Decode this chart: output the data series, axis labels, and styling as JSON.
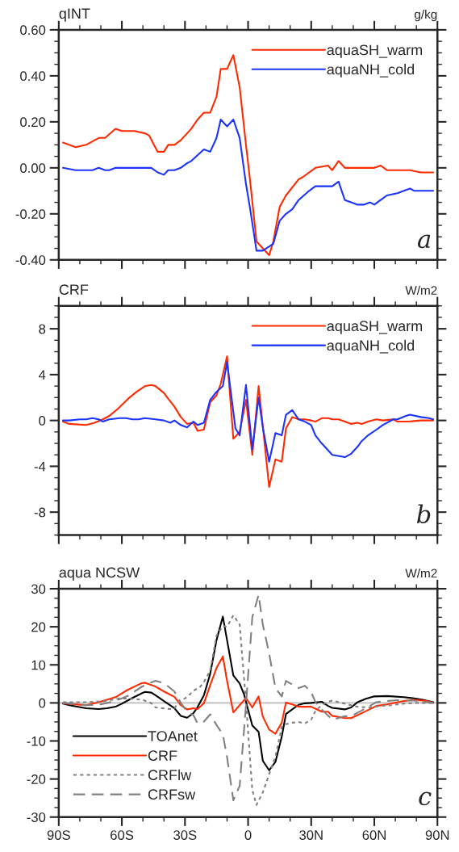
{
  "chart_data": [
    {
      "type": "line",
      "title": "qINT",
      "ylabel": "g/kg",
      "annotations": [
        "a"
      ],
      "legend": "top right",
      "tick_labels": "y",
      "grid": false,
      "line_style": "solid",
      "xlim": [
        -90,
        90
      ],
      "xticks": [
        {
          "value": -90,
          "label": null
        },
        {
          "value": -60,
          "label": null
        },
        {
          "value": -30,
          "label": null
        },
        {
          "value": 0,
          "label": null
        },
        {
          "value": 30,
          "label": null
        },
        {
          "value": 60,
          "label": null
        },
        {
          "value": 90,
          "label": null
        }
      ],
      "ylim": [
        -0.4,
        0.6
      ],
      "yticks": [
        {
          "value": -0.4,
          "label": "-0.40"
        },
        {
          "value": -0.2,
          "label": "-0.20"
        },
        {
          "value": 0,
          "label": "0.00"
        },
        {
          "value": 0.2,
          "label": "0.20"
        },
        {
          "value": 0.4,
          "label": "0.40"
        },
        {
          "value": 0.6,
          "label": "0.60"
        }
      ],
      "series": [
        {
          "name": "aquaSH_warm",
          "color": "#ff2a00",
          "x": [
            -88,
            -82,
            -77,
            -71,
            -68,
            -63,
            -60,
            -57,
            -54,
            -49,
            -47,
            -43,
            -40,
            -38,
            -35,
            -32,
            -29,
            -27,
            -24,
            -21,
            -18,
            -15,
            -13,
            -10,
            -7,
            -4,
            -1,
            1,
            4,
            10,
            12,
            15,
            18,
            24,
            26,
            32,
            38,
            40,
            43,
            46,
            52,
            60,
            63,
            66,
            68,
            71,
            77,
            82,
            88
          ],
          "values": [
            0.11,
            0.09,
            0.1,
            0.13,
            0.13,
            0.17,
            0.16,
            0.16,
            0.16,
            0.15,
            0.14,
            0.07,
            0.07,
            0.1,
            0.1,
            0.12,
            0.15,
            0.17,
            0.21,
            0.24,
            0.24,
            0.31,
            0.43,
            0.43,
            0.49,
            0.35,
            0.1,
            -0.06,
            -0.32,
            -0.38,
            -0.32,
            -0.17,
            -0.12,
            -0.05,
            -0.04,
            0.0,
            0.01,
            -0.01,
            0.03,
            0.0,
            0.0,
            0.0,
            0.01,
            -0.01,
            -0.01,
            -0.01,
            -0.01,
            -0.02,
            -0.02
          ]
        },
        {
          "name": "aquaNH_cold",
          "color": "#1a33ff",
          "x": [
            -88,
            -82,
            -77,
            -74,
            -71,
            -68,
            -66,
            -63,
            -58,
            -54,
            -49,
            -46,
            -43,
            -40,
            -38,
            -35,
            -32,
            -29,
            -27,
            -21,
            -18,
            -15,
            -13,
            -10,
            -7,
            -4,
            -1,
            1,
            4,
            7,
            12,
            15,
            18,
            21,
            24,
            29,
            32,
            40,
            43,
            46,
            49,
            52,
            55,
            58,
            60,
            63,
            66,
            71,
            74,
            77,
            79,
            82,
            88
          ],
          "values": [
            0.0,
            -0.01,
            -0.01,
            -0.01,
            0.0,
            -0.01,
            -0.01,
            0.0,
            0.0,
            0.0,
            0.0,
            0.0,
            -0.02,
            -0.03,
            -0.01,
            -0.01,
            0.0,
            0.02,
            0.03,
            0.08,
            0.07,
            0.13,
            0.21,
            0.18,
            0.21,
            0.13,
            -0.07,
            -0.18,
            -0.36,
            -0.36,
            -0.33,
            -0.23,
            -0.2,
            -0.18,
            -0.14,
            -0.1,
            -0.08,
            -0.08,
            -0.06,
            -0.14,
            -0.15,
            -0.16,
            -0.16,
            -0.15,
            -0.16,
            -0.14,
            -0.12,
            -0.11,
            -0.1,
            -0.09,
            -0.1,
            -0.1,
            -0.1
          ]
        }
      ]
    },
    {
      "type": "line",
      "title": "CRF",
      "ylabel": "W/m2",
      "annotations": [
        "b"
      ],
      "legend": "top right",
      "tick_labels": "y",
      "grid": false,
      "line_style": "solid",
      "xlim": [
        -90,
        90
      ],
      "xticks": [
        {
          "value": -90,
          "label": null
        },
        {
          "value": -60,
          "label": null
        },
        {
          "value": -30,
          "label": null
        },
        {
          "value": 0,
          "label": null
        },
        {
          "value": 30,
          "label": null
        },
        {
          "value": 60,
          "label": null
        },
        {
          "value": 90,
          "label": null
        }
      ],
      "ylim": [
        -10,
        10
      ],
      "yticks": [
        -8,
        -4,
        0,
        4,
        8
      ],
      "series": [
        {
          "name": "aquaSH_warm",
          "color": "#ff2a00",
          "x": [
            -88,
            -85,
            -77,
            -73,
            -69,
            -66,
            -62,
            -57,
            -53,
            -49,
            -46,
            -44,
            -40,
            -38,
            -35,
            -32,
            -29,
            -26,
            -24,
            -21,
            -18,
            -15,
            -13,
            -10,
            -7,
            -4,
            -1,
            2,
            5,
            7,
            10,
            13,
            16,
            18,
            21,
            24,
            27,
            30,
            32,
            35,
            38,
            40,
            43,
            46,
            49,
            52,
            54,
            57,
            61,
            64,
            69,
            71,
            76,
            82,
            88
          ],
          "values": [
            -0.1,
            -0.3,
            -0.4,
            -0.2,
            0.1,
            0.4,
            1.0,
            1.9,
            2.5,
            3.0,
            3.1,
            3.0,
            2.4,
            1.9,
            1.2,
            0.3,
            -0.3,
            -0.2,
            -0.9,
            -0.8,
            1.6,
            2.2,
            3.2,
            5.6,
            -1.6,
            -1.0,
            1.8,
            -3.0,
            3.0,
            -0.5,
            -5.8,
            -3.4,
            -3.6,
            -0.7,
            0.3,
            0.1,
            0.1,
            0.0,
            -0.1,
            0.2,
            0.2,
            0.1,
            0.1,
            -0.1,
            -0.3,
            -0.2,
            -0.3,
            -0.1,
            0.1,
            0.0,
            0.1,
            -0.1,
            -0.1,
            0.0,
            0.0
          ]
        },
        {
          "name": "aquaNH_cold",
          "color": "#1a33ff",
          "x": [
            -88,
            -85,
            -80,
            -77,
            -74,
            -71,
            -69,
            -66,
            -61,
            -58,
            -55,
            -52,
            -49,
            -44,
            -40,
            -37,
            -35,
            -32,
            -29,
            -26,
            -24,
            -21,
            -18,
            -15,
            -12,
            -10,
            -6,
            -4,
            -1,
            2,
            5,
            7,
            10,
            13,
            16,
            18,
            21,
            24,
            27,
            30,
            32,
            35,
            38,
            40,
            46,
            49,
            52,
            54,
            57,
            61,
            64,
            69,
            71,
            75,
            77,
            82,
            86,
            88
          ],
          "values": [
            0.0,
            0.0,
            0.1,
            0.1,
            0.2,
            0.1,
            -0.1,
            0.1,
            0.2,
            0.2,
            0.1,
            0.1,
            0.2,
            0.1,
            0.0,
            -0.2,
            0.0,
            -0.4,
            -0.6,
            -0.1,
            -0.4,
            -0.2,
            1.8,
            2.5,
            3.0,
            5.1,
            -0.7,
            -1.3,
            3.1,
            -2.5,
            2.0,
            -0.6,
            -3.6,
            -1.1,
            -1.3,
            0.5,
            0.9,
            0.1,
            -0.1,
            -0.4,
            -1.3,
            -2.0,
            -2.6,
            -3.0,
            -3.2,
            -2.9,
            -2.3,
            -1.8,
            -1.3,
            -0.8,
            -0.4,
            0.1,
            0.1,
            0.4,
            0.5,
            0.3,
            0.2,
            0.1
          ]
        }
      ]
    },
    {
      "type": "line",
      "title": "aqua NCSW",
      "ylabel": "W/m2",
      "annotations": [
        "c"
      ],
      "legend": "bottom left",
      "grid": false,
      "xlim": [
        -90,
        90
      ],
      "xticks": [
        {
          "value": -90,
          "label": "90S"
        },
        {
          "value": -60,
          "label": "60S"
        },
        {
          "value": -30,
          "label": "30S"
        },
        {
          "value": 0,
          "label": "0"
        },
        {
          "value": 30,
          "label": "30N"
        },
        {
          "value": 60,
          "label": "60N"
        },
        {
          "value": 90,
          "label": "90N"
        }
      ],
      "ylim": [
        -30,
        30
      ],
      "yticks": [
        -30,
        -20,
        -10,
        0,
        10,
        20,
        30
      ],
      "ref_lines": [
        {
          "axis": "y",
          "value": 0,
          "color": "#c8c8c8",
          "line_style": "solid"
        }
      ],
      "series": [
        {
          "name": "TOAnet",
          "color": "#000000",
          "line_style": "solid",
          "x": [
            -88,
            -84,
            -77,
            -71,
            -67,
            -63,
            -60,
            -55,
            -51,
            -49,
            -46,
            -44,
            -40,
            -35,
            -32,
            -29,
            -26,
            -24,
            -21,
            -18,
            -15,
            -12,
            -10,
            -7,
            -4,
            -2,
            2,
            5,
            7,
            10,
            13,
            16,
            18,
            21,
            24,
            27,
            30,
            35,
            38,
            40,
            46,
            49,
            52,
            56,
            60,
            66,
            74,
            79,
            83,
            88
          ],
          "values": [
            -0.2,
            -0.7,
            -1.4,
            -1.6,
            -1.4,
            -1.0,
            -0.2,
            1.3,
            2.4,
            2.9,
            2.7,
            2.0,
            0.5,
            -1.4,
            -3.4,
            -3.9,
            -2.7,
            -1.1,
            2.0,
            7.7,
            16.5,
            22.7,
            16.5,
            7.2,
            5.1,
            2.4,
            -5.9,
            -7.6,
            -15.2,
            -17.7,
            -15.5,
            -8.9,
            -2.9,
            -1.7,
            -0.5,
            -0.1,
            0.0,
            0.3,
            -0.8,
            -1.3,
            -1.7,
            -1.2,
            0.2,
            1.1,
            1.7,
            1.8,
            1.5,
            1.2,
            0.8,
            0.2
          ]
        },
        {
          "name": "CRF",
          "color": "#ff2a00",
          "line_style": "solid",
          "x": [
            -88,
            -77,
            -71,
            -63,
            -58,
            -51,
            -49,
            -44,
            -40,
            -35,
            -32,
            -29,
            -26,
            -24,
            -21,
            -18,
            -15,
            -12,
            -10,
            -7,
            -1,
            2,
            5,
            7,
            10,
            13,
            16,
            18,
            21,
            24,
            30,
            32,
            35,
            38,
            40,
            46,
            49,
            54,
            61,
            66,
            74,
            79,
            85,
            88
          ],
          "values": [
            -0.1,
            -0.6,
            0.2,
            1.5,
            3.2,
            5.1,
            5.3,
            4.3,
            3.0,
            1.6,
            -0.6,
            -1.7,
            -1.4,
            -1.6,
            -0.1,
            4.7,
            9.2,
            12.2,
            5.8,
            -2.5,
            1.3,
            -1.2,
            1.7,
            -3.6,
            -7.0,
            -8.1,
            -5.2,
            0.1,
            -0.4,
            -1.0,
            -1.0,
            -1.5,
            -2.3,
            -2.3,
            -3.4,
            -4.0,
            -4.0,
            -2.7,
            -0.8,
            -0.4,
            0.5,
            0.8,
            0.5,
            0.0
          ]
        },
        {
          "name": "CRFlw",
          "color": "#808080",
          "line_style": "dotted",
          "x": [
            -88,
            -77,
            -69,
            -61,
            -56,
            -50,
            -46,
            -44,
            -37,
            -35,
            -33,
            -29,
            -26,
            -23,
            -21,
            -18,
            -15,
            -12,
            -10,
            -7,
            -4,
            -1,
            2,
            4,
            7,
            10,
            13,
            16,
            18,
            21,
            24,
            27,
            30,
            32,
            35,
            38,
            40,
            46,
            52,
            57,
            63,
            68,
            74,
            81,
            88
          ],
          "values": [
            0.2,
            0.2,
            0.4,
            1.2,
            1.1,
            0.8,
            -0.1,
            -1.2,
            -1.6,
            -1.4,
            0.3,
            1.5,
            3.2,
            4.1,
            5.5,
            8.5,
            17.7,
            20.2,
            20.0,
            23.0,
            20.6,
            0.2,
            -22.9,
            -26.8,
            -23.5,
            -18.8,
            -14.1,
            -6.3,
            -5.6,
            -5.2,
            -5.0,
            -5.4,
            -4.4,
            -2.1,
            -0.6,
            0.3,
            0.6,
            -0.2,
            -1.0,
            -1.2,
            -0.8,
            -0.6,
            -0.2,
            0.0,
            0.0
          ]
        },
        {
          "name": "CRFsw",
          "color": "#808080",
          "line_style": "dashed",
          "x": [
            -88,
            -77,
            -71,
            -63,
            -57,
            -51,
            -47,
            -44,
            -40,
            -35,
            -32,
            -29,
            -26,
            -24,
            -21,
            -18,
            -15,
            -12,
            -10,
            -7,
            -4,
            -1,
            2,
            5,
            7,
            10,
            13,
            16,
            18,
            24,
            27,
            30,
            32,
            35,
            40,
            46,
            49,
            54,
            61,
            66,
            71,
            79,
            88
          ],
          "values": [
            0.0,
            -0.6,
            -0.5,
            0.5,
            1.9,
            4.1,
            5.2,
            5.8,
            5.2,
            3.0,
            0.0,
            -2.3,
            -3.2,
            -5.4,
            -4.9,
            -3.0,
            -5.8,
            -8.3,
            -14.2,
            -25.6,
            -21.8,
            -0.6,
            22.5,
            28.4,
            20.6,
            13.0,
            3.9,
            1.7,
            5.8,
            3.9,
            4.5,
            2.8,
            0.2,
            -1.7,
            -4.4,
            -3.5,
            -3.5,
            -2.0,
            0.2,
            0.5,
            0.7,
            0.6,
            0.0
          ]
        }
      ]
    }
  ]
}
